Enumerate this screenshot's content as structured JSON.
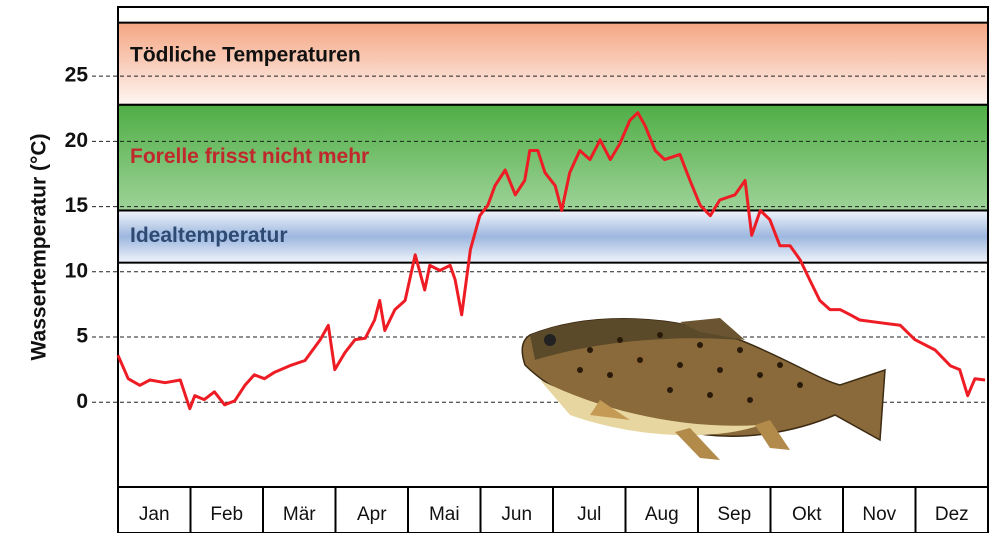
{
  "chart_data": {
    "type": "line",
    "y_label": "Wassertemperatur (°C)",
    "categories": [
      "Jan",
      "Feb",
      "Mär",
      "Apr",
      "Mai",
      "Jun",
      "Jul",
      "Aug",
      "Sep",
      "Okt",
      "Nov",
      "Dez"
    ],
    "xlim": [
      0,
      12
    ],
    "ylim": [
      -6.5,
      30.3
    ],
    "yticks": [
      0,
      5,
      10,
      15,
      20,
      25
    ],
    "grid": true,
    "bands": [
      {
        "name": "Tödliche Temperaturen",
        "from": 22.8,
        "to": 29.1,
        "color": "#f4a582",
        "label_color": "#111111"
      },
      {
        "name": "Forelle frisst nicht mehr",
        "from": 14.7,
        "to": 22.8,
        "color": "#4fae45",
        "label_color": "#c0282d"
      },
      {
        "name": "Idealtemperatur",
        "from": 10.7,
        "to": 14.7,
        "color": "#9db7df",
        "label_color": "#2e4a72"
      }
    ],
    "series": [
      {
        "color": "#ee1c24",
        "x": [
          0,
          0.14,
          0.3,
          0.44,
          0.65,
          0.86,
          0.99,
          1.06,
          1.19,
          1.33,
          1.47,
          1.61,
          1.75,
          1.88,
          2.02,
          2.16,
          2.37,
          2.58,
          2.79,
          2.9,
          2.99,
          3.13,
          3.27,
          3.41,
          3.54,
          3.61,
          3.68,
          3.82,
          3.96,
          4.1,
          4.23,
          4.3,
          4.44,
          4.58,
          4.65,
          4.74,
          4.86,
          4.99,
          5.1,
          5.2,
          5.34,
          5.48,
          5.61,
          5.68,
          5.79,
          5.89,
          6.03,
          6.12,
          6.23,
          6.37,
          6.51,
          6.65,
          6.79,
          6.92,
          7.06,
          7.17,
          7.27,
          7.41,
          7.54,
          7.75,
          7.89,
          8.03,
          8.17,
          8.3,
          8.51,
          8.65,
          8.74,
          8.86,
          8.99,
          9.13,
          9.27,
          9.41,
          9.54,
          9.68,
          9.82,
          9.96,
          10.1,
          10.23,
          10.51,
          10.79,
          10.99,
          11.27,
          11.48,
          11.61,
          11.72,
          11.82,
          11.96
        ],
        "values": [
          3.6,
          1.8,
          1.3,
          1.7,
          1.5,
          1.7,
          -0.5,
          0.5,
          0.2,
          0.8,
          -0.2,
          0.1,
          1.3,
          2.1,
          1.8,
          2.3,
          2.8,
          3.2,
          4.8,
          5.9,
          2.5,
          3.8,
          4.8,
          4.9,
          6.3,
          7.8,
          5.5,
          7.1,
          7.8,
          11.3,
          8.6,
          10.5,
          10.1,
          10.5,
          9.4,
          6.7,
          11.7,
          14.3,
          15.1,
          16.6,
          17.8,
          15.9,
          17.0,
          19.3,
          19.3,
          17.6,
          16.6,
          14.7,
          17.6,
          19.3,
          18.6,
          20.1,
          18.6,
          19.8,
          21.6,
          22.2,
          21.2,
          19.3,
          18.6,
          19.0,
          17.0,
          15.1,
          14.3,
          15.5,
          15.9,
          17.0,
          12.8,
          14.7,
          14.0,
          12.0,
          12.0,
          10.9,
          9.4,
          7.8,
          7.1,
          7.1,
          6.7,
          6.3,
          6.1,
          5.9,
          4.8,
          4.0,
          2.8,
          2.5,
          0.5,
          1.8,
          1.7
        ]
      }
    ]
  }
}
